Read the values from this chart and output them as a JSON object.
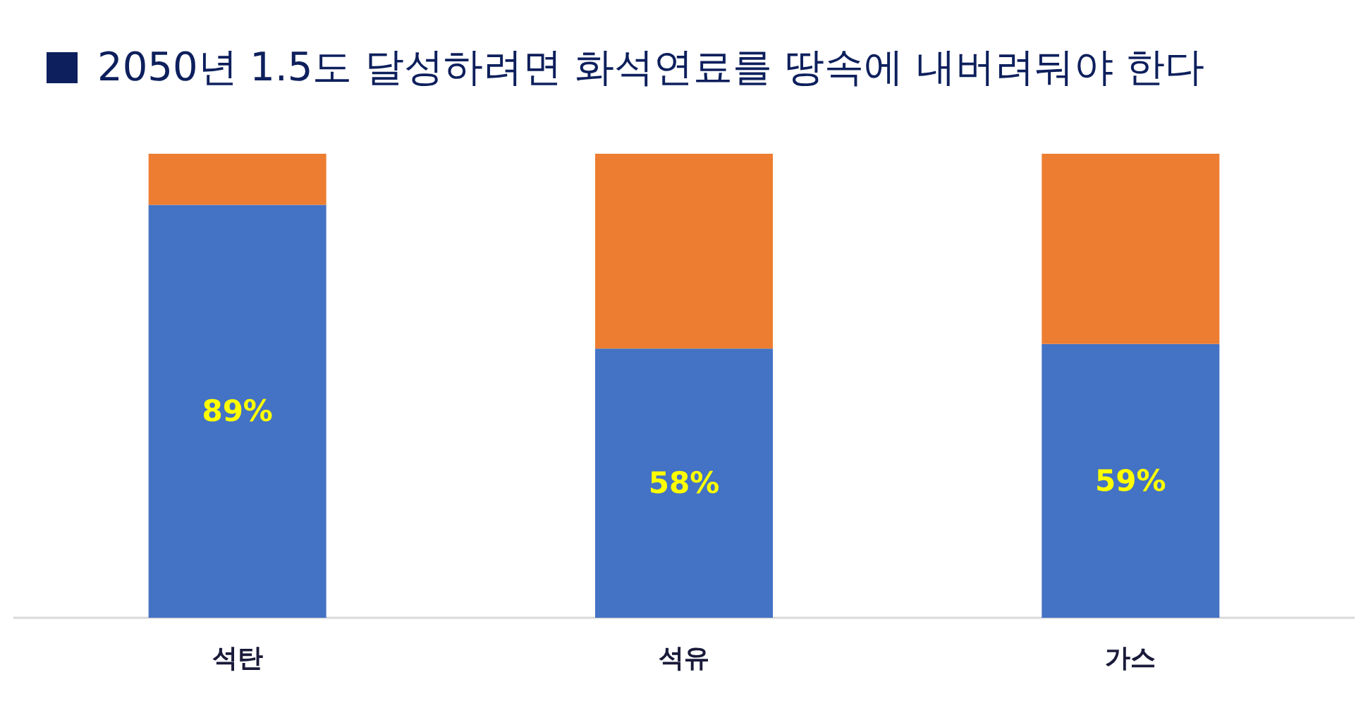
{
  "chart_data": {
    "type": "bar",
    "title": "2050년 1.5도 달성하려면 화석연료를 땅속에 내버려둬야 한다",
    "categories": [
      "석탄",
      "석유",
      "가스"
    ],
    "series": [
      {
        "color": "#4472c4",
        "values": [
          89,
          58,
          59
        ],
        "value_labels": [
          "89%",
          "58%",
          "59%"
        ]
      },
      {
        "color": "#ed7d31",
        "values": [
          11,
          42,
          41
        ]
      }
    ],
    "stacked": true,
    "ylim": [
      0,
      100
    ],
    "tick_labels": "x"
  }
}
